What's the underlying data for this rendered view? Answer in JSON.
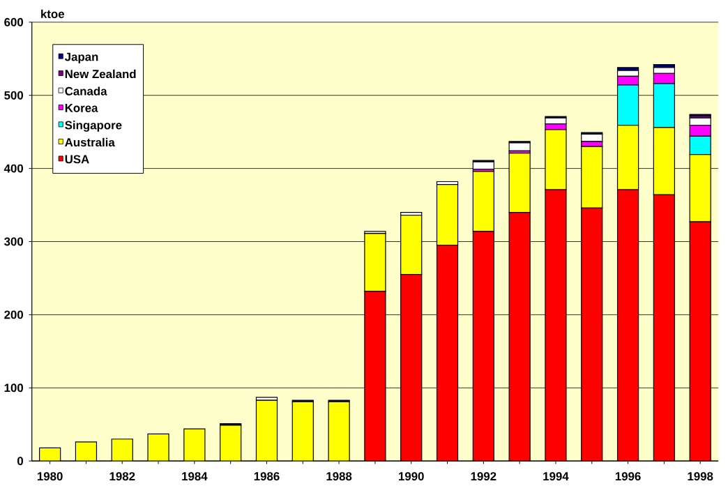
{
  "chart_data": {
    "type": "bar",
    "stacked": true,
    "ylabel": "ktoe",
    "categories": [
      "1980",
      null,
      "1982",
      null,
      "1984",
      null,
      "1986",
      null,
      "1988",
      null,
      "1990",
      null,
      "1992",
      null,
      "1994",
      null,
      "1996",
      null,
      "1998"
    ],
    "series": [
      {
        "name": "USA",
        "color": "#ff0000",
        "values": [
          0,
          0,
          0,
          0,
          0,
          0,
          0,
          0,
          0,
          232,
          255,
          295,
          314,
          340,
          371,
          346,
          371,
          364,
          327
        ]
      },
      {
        "name": "Australia",
        "color": "#ffff00",
        "values": [
          18,
          26,
          30,
          37,
          44,
          49,
          83,
          81,
          81,
          79,
          81,
          83,
          82,
          81,
          82,
          84,
          88,
          92,
          92
        ]
      },
      {
        "name": "Singapore",
        "color": "#00ffff",
        "values": [
          0,
          0,
          0,
          0,
          0,
          0,
          0,
          0,
          0,
          0,
          0,
          0,
          0,
          0,
          0,
          0,
          55,
          60,
          25
        ]
      },
      {
        "name": "Korea",
        "color": "#ff00ff",
        "values": [
          0,
          0,
          0,
          0,
          0,
          0,
          0,
          0,
          0,
          0,
          0,
          0,
          3,
          3,
          8,
          7,
          12,
          14,
          15
        ]
      },
      {
        "name": "Canada",
        "color": "#ffffff",
        "values": [
          0,
          0,
          0,
          0,
          0,
          0,
          4,
          0,
          0,
          3,
          4,
          4,
          10,
          11,
          8,
          10,
          8,
          8,
          10
        ]
      },
      {
        "name": "New Zealand",
        "color": "#800080",
        "values": [
          0,
          0,
          0,
          0,
          0,
          0,
          0,
          0,
          0,
          0,
          0,
          0,
          0,
          0,
          0,
          0,
          0,
          0,
          3
        ]
      },
      {
        "name": "Japan",
        "color": "#000080",
        "values": [
          0,
          0,
          0,
          0,
          0,
          2,
          0,
          2,
          2,
          0,
          0,
          0,
          2,
          2,
          2,
          2,
          4,
          4,
          2
        ]
      }
    ],
    "ylim": [
      0,
      600
    ],
    "yticks": [
      0,
      100,
      200,
      300,
      400,
      500,
      600
    ],
    "grid": "y",
    "legend": "top left"
  }
}
